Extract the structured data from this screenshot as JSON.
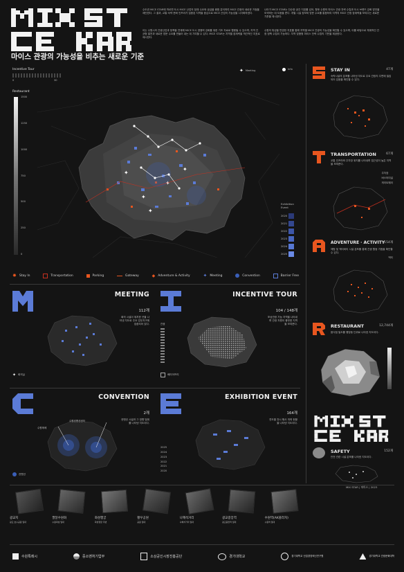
{
  "header": {
    "logo_line1": "MIX ST",
    "logo_line2": "CE KAR",
    "subtitle": "마이스 관광의 가능성을 비추는 새로운 기준",
    "intro_col1": "수도권 MICE STAR에 따르면 도시 MICE 산업의 잠재 수요와 공급을 종합 분석하여 MICE 관광의 새로운 거점을 제안한다. 그 결과, 교통·숙박·문화 인프라가 집중된 지역을 중심으로 MICE 산업의 가능성을 시각화하였다.",
    "intro_col1b": "이는 수원시의 관광산업과 정책을 연계해 MICE 도시 경쟁력 강화를 위한 기초 자료로 활용될 수 있으며, 지역 간 균형 발전과 새로운 방문 수요를 만들어 내는 데 기여할 수 있다. MICE STAR는 지역별 잠재력을 객관적인 지표로 제시한다.",
    "intro_col2": "나아가 MICE STAR는 단순한 공간 지표를 넘어, 향후 수원의 마이스 관광 전략 수립과 도시 브랜드 강화 방안을 모색하는 데 도움을 준다. 개별 시설 정보와 방문 수요를 통합하여 지역의 MICE 관광 잠재력을 보여주는 새로운 기준을 제시한다.",
    "intro_col2b": "수원의 특성을 반영한 지표를 통해 지역별 MICE 관광의 가능성을 확인할 수 있으며, 이를 바탕으로 체계적인 관광 정책 수립이 가능하다. 지역 맞춤형 마이스 전략 수립의 기반을 제공한다."
  },
  "main_map": {
    "incentive_tour_label": "Incentive Tour",
    "incentive_min": "0",
    "incentive_max": "30",
    "restaurant_label": "Restaurant",
    "restaurant_ticks": [
      "1500",
      "1250",
      "1000",
      "750",
      "500",
      "250",
      "0"
    ],
    "meeting_label": "Meeting",
    "info_label": "Info",
    "exhibition_label": "Exhibition Event",
    "exhibition_years": [
      "2020",
      "2021",
      "2022",
      "2023",
      "2024",
      "2025"
    ]
  },
  "legend": [
    {
      "label": "Stay In",
      "color": "#e8561f"
    },
    {
      "label": "Transportation",
      "color": "#c8301f"
    },
    {
      "label": "Parking",
      "color": "#e8561f"
    },
    {
      "label": "Gateway",
      "color": "#e8561f"
    },
    {
      "label": "Adventure & Activity",
      "color": "#e8561f"
    },
    {
      "label": "Meeting",
      "color": "#5b7bd6"
    },
    {
      "label": "Convention",
      "color": "#3a5fb8"
    },
    {
      "label": "Barrier Free",
      "color": "#2d3c8a"
    }
  ],
  "right_panels": [
    {
      "title": "STAY IN",
      "count": "47개",
      "icon": "s-letter",
      "note": "숙박시설의 분포를 나타낸 지도로 주요 관광지 주변에 밀집되어 있음을 확인할 수 있다."
    },
    {
      "title": "TRANSPORTATION",
      "count": "67개",
      "icon": "t-letter",
      "note": "교통 인프라와 주차장 위치를 나타내며 접근성이 높은 지역을 보여준다.",
      "sub_legend": [
        "주차장",
        "버스터미널",
        "게이트웨이"
      ]
    },
    {
      "title": "ADVENTURE · ACTIVITY",
      "count": "154개",
      "icon": "a-letter",
      "note": "체험 및 액티비티 시설 분포를 통해 관광 활동 거점을 확인할 수 있다.",
      "sub_legend": [
        "액티"
      ]
    },
    {
      "title": "RESTAURANT",
      "count": "12,744개",
      "icon": "r-letter",
      "note": "음식점 밀도를 행정동 단위로 나타낸 지도이다."
    },
    {
      "title": "SAFETY",
      "count": "152개",
      "icon": "safety-blob",
      "note": "안전 관련 시설 분포를 나타낸 지도이다."
    }
  ],
  "middle_panels": [
    {
      "title": "MEETING",
      "count": "112개",
      "icon": "m-letter",
      "note": "회의 시설이 위치한 곳을 나타낸 지도로 주요 업무지구에 집중되어 있다.",
      "foot": "회의실"
    },
    {
      "title": "INCENTIVE TOUR",
      "count": "104 / 148개",
      "icon": "i-letter",
      "note": "포상관광 가능 지역을 나타내며 관광 자원이 풍부한 지역을 보여준다.",
      "foot": "베리어프리",
      "scale_label": "관광"
    },
    {
      "title": "CONVENTION",
      "count": "2개",
      "icon": "c-letter",
      "note": "컨벤션 시설과 그 영향 범위를 나타낸 지도이다.",
      "foot": "컨벤션",
      "callouts": [
        "수원컨벤션센터",
        "수원메쎄"
      ]
    },
    {
      "title": "EXHIBITION EVENT",
      "count": "164개",
      "icon": "e-letter",
      "note": "연도별 전시 행사 개최 현황을 나타낸 지도이다.",
      "years": [
        "2025",
        "2024",
        "2023",
        "2022",
        "2021",
        "2020"
      ]
    }
  ],
  "sites": [
    {
      "name": "광교지",
      "note": "광교 호수공원 일대"
    },
    {
      "name": "팔달수원화",
      "note": "수원화성 일대"
    },
    {
      "name": "화성행궁",
      "note": "화성행궁 주변"
    },
    {
      "name": "황우공원",
      "note": "공원 일대"
    },
    {
      "name": "나혜석거리",
      "note": "나혜석거리 일대"
    },
    {
      "name": "광교중앙역",
      "note": "광교중앙역 일대"
    },
    {
      "name": "수원역(AK플라자)",
      "note": "수원역 일대"
    }
  ],
  "sponsors": [
    {
      "name": "수원특례시",
      "icon": "suwon-logo"
    },
    {
      "name": "중소벤처기업부",
      "icon": "taegeuk-logo"
    },
    {
      "name": "소상공인시장진흥공단",
      "icon": "semas-logo"
    },
    {
      "name": "경기대학교",
      "icon": "kgu-logo"
    },
    {
      "name": "경기대학교 산업경영혁신연구원",
      "icon": "kgu2-logo"
    },
    {
      "name": "경기대학교 관광문화대학",
      "icon": "kgu3-logo"
    }
  ],
  "colors": {
    "bg": "#141414",
    "orange": "#e8561f",
    "blue": "#4a6fd4",
    "panel": "#1c1c1c"
  },
  "page_number": "MIX STAR | 마이스 | 2023"
}
